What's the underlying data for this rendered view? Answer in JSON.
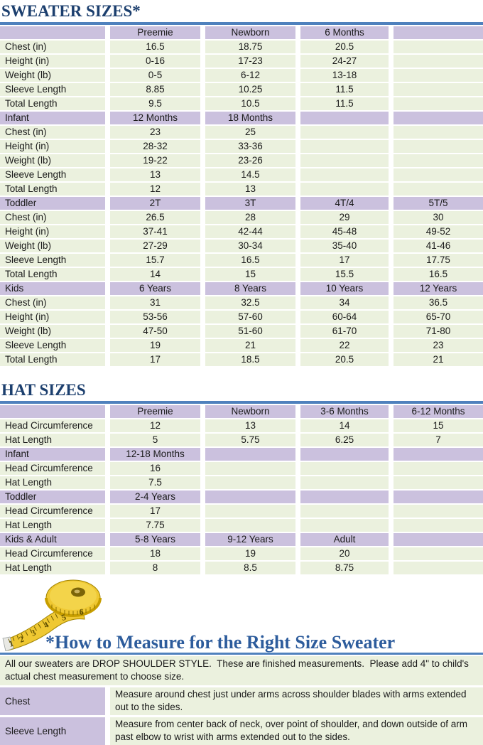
{
  "colors": {
    "title-blue": "#1c3f6e",
    "heading-blue": "#2d5c9c",
    "rule-blue": "#4f81bd",
    "purple": "#cbc1de",
    "green": "#ebf1de",
    "text": "#1a1a1a",
    "tape-yellow": "#efc832",
    "tape-edge": "#a08300"
  },
  "sweater": {
    "title": "SWEATER SIZES*",
    "bands": [
      {
        "header": [
          "",
          "Preemie",
          "Newborn",
          "6 Months",
          ""
        ],
        "rows": [
          [
            "Chest (in)",
            "16.5",
            "18.75",
            "20.5",
            ""
          ],
          [
            "Height (in)",
            "0-16",
            "17-23",
            "24-27",
            ""
          ],
          [
            "Weight (lb)",
            "0-5",
            "6-12",
            "13-18",
            ""
          ],
          [
            "Sleeve Length",
            "8.85",
            "10.25",
            "11.5",
            ""
          ],
          [
            "Total Length",
            "9.5",
            "10.5",
            "11.5",
            ""
          ]
        ]
      },
      {
        "header": [
          "Infant",
          "12 Months",
          "18 Months",
          "",
          ""
        ],
        "rows": [
          [
            "Chest (in)",
            "23",
            "25",
            "",
            ""
          ],
          [
            "Height (in)",
            "28-32",
            "33-36",
            "",
            ""
          ],
          [
            "Weight (lb)",
            "19-22",
            "23-26",
            "",
            ""
          ],
          [
            "Sleeve Length",
            "13",
            "14.5",
            "",
            ""
          ],
          [
            "Total Length",
            "12",
            "13",
            "",
            ""
          ]
        ]
      },
      {
        "header": [
          "Toddler",
          "2T",
          "3T",
          "4T/4",
          "5T/5"
        ],
        "rows": [
          [
            "Chest (in)",
            "26.5",
            "28",
            "29",
            "30"
          ],
          [
            "Height (in)",
            "37-41",
            "42-44",
            "45-48",
            "49-52"
          ],
          [
            "Weight (lb)",
            "27-29",
            "30-34",
            "35-40",
            "41-46"
          ],
          [
            "Sleeve Length",
            "15.7",
            "16.5",
            "17",
            "17.75"
          ],
          [
            "Total Length",
            "14",
            "15",
            "15.5",
            "16.5"
          ]
        ]
      },
      {
        "header": [
          "Kids",
          "6 Years",
          "8 Years",
          "10 Years",
          "12 Years"
        ],
        "rows": [
          [
            "Chest (in)",
            "31",
            "32.5",
            "34",
            "36.5"
          ],
          [
            "Height (in)",
            "53-56",
            "57-60",
            "60-64",
            "65-70"
          ],
          [
            "Weight (lb)",
            "47-50",
            "51-60",
            "61-70",
            "71-80"
          ],
          [
            "Sleeve Length",
            "19",
            "21",
            "22",
            "23"
          ],
          [
            "Total Length",
            "17",
            "18.5",
            "20.5",
            "21"
          ]
        ]
      }
    ]
  },
  "hats": {
    "title": "HAT SIZES",
    "bands": [
      {
        "header": [
          "",
          "Preemie",
          "Newborn",
          "3-6 Months",
          "6-12 Months"
        ],
        "rows": [
          [
            "Head Circumference",
            "12",
            "13",
            "14",
            "15"
          ],
          [
            "Hat Length",
            "5",
            "5.75",
            "6.25",
            "7"
          ]
        ]
      },
      {
        "header": [
          "Infant",
          "12-18 Months",
          "",
          "",
          ""
        ],
        "rows": [
          [
            "Head Circumference",
            "16",
            "",
            "",
            ""
          ],
          [
            "Hat Length",
            "7.5",
            "",
            "",
            ""
          ]
        ]
      },
      {
        "header": [
          "Toddler",
          "2-4 Years",
          "",
          "",
          ""
        ],
        "rows": [
          [
            "Head Circumference",
            "17",
            "",
            "",
            ""
          ],
          [
            "Hat Length",
            "7.75",
            "",
            "",
            ""
          ]
        ]
      },
      {
        "header": [
          "Kids & Adult",
          "5-8 Years",
          "9-12 Years",
          "Adult",
          ""
        ],
        "rows": [
          [
            "Head Circumference",
            "18",
            "19",
            "20",
            ""
          ],
          [
            "Hat Length",
            "8",
            "8.5",
            "8.75",
            ""
          ]
        ]
      }
    ]
  },
  "measure": {
    "heading": "*How to Measure for the Right Size Sweater",
    "intro": "All our sweaters are DROP SHOULDER STYLE.  These are finished measurements.  Please add 4\" to child's actual chest measurement to choose size.",
    "rows": [
      {
        "label": "Chest",
        "text": "Measure around chest just under arms across shoulder blades with arms extended out to the sides."
      },
      {
        "label": "Sleeve Length",
        "text": "Measure from center back of neck, over point of shoulder, and down outside of arm past elbow to wrist with arms extended out to the sides."
      }
    ],
    "tape_numbers": [
      "1",
      "2",
      "3",
      "4",
      "5",
      "6"
    ]
  }
}
